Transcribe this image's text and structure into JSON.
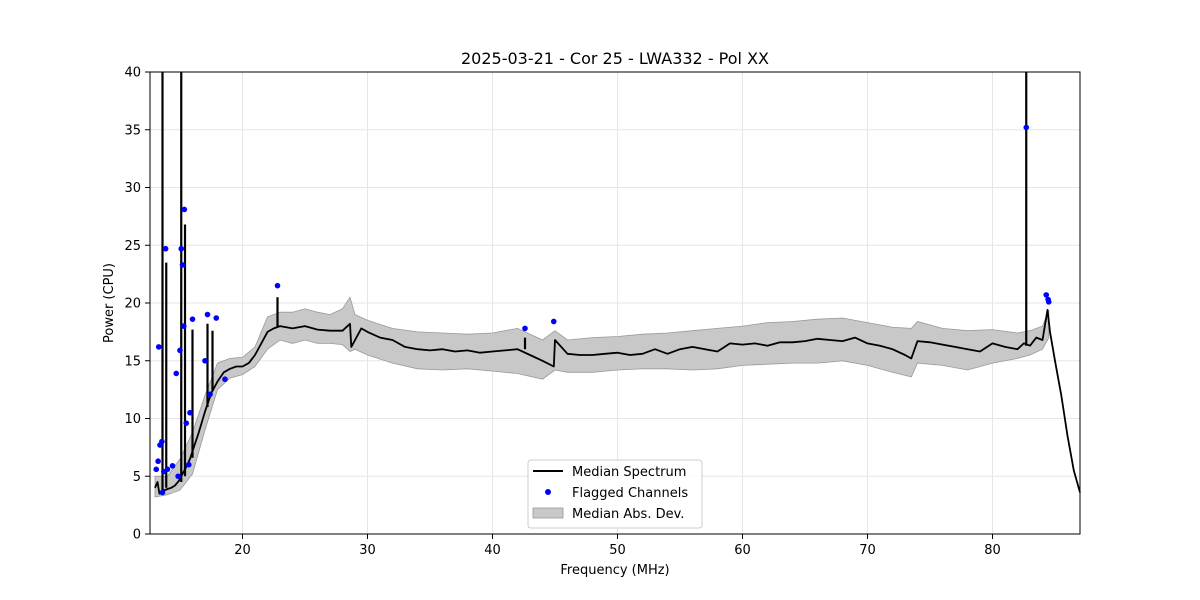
{
  "chart_data": {
    "type": "line",
    "title": "2025-03-21 - Cor 25 - LWA332 - Pol XX",
    "xlabel": "Frequency (MHz)",
    "ylabel": "Power (CPU)",
    "xlim": [
      12.6,
      87.0
    ],
    "ylim": [
      0,
      40
    ],
    "xticks": [
      20,
      30,
      40,
      50,
      60,
      70,
      80
    ],
    "yticks": [
      0,
      5,
      10,
      15,
      20,
      25,
      30,
      35,
      40
    ],
    "grid": true,
    "legend": {
      "position": "bottom-center",
      "entries": [
        "Median Spectrum",
        "Flagged Channels",
        "Median Abs. Dev."
      ]
    },
    "colors": {
      "median": "#000000",
      "flagged": "#0000ff",
      "band": "#c8c8c8",
      "band_edge": "#999999",
      "grid": "#e6e6e6"
    },
    "series": [
      {
        "name": "Median Spectrum",
        "x": [
          13.0,
          13.2,
          13.35,
          13.5,
          13.6,
          13.8,
          14.0,
          14.3,
          14.6,
          14.9,
          15.2,
          15.5,
          15.8,
          16.1,
          16.5,
          17.0,
          17.5,
          18.0,
          18.5,
          19.0,
          19.5,
          20.0,
          20.5,
          21.0,
          21.5,
          22.0,
          22.5,
          23.0,
          24.0,
          25.0,
          26.0,
          27.0,
          28.0,
          28.6,
          28.7,
          29.5,
          30.0,
          31.0,
          32.0,
          33.0,
          34.0,
          35.0,
          36.0,
          37.0,
          38.0,
          39.0,
          40.0,
          41.0,
          42.0,
          43.0,
          44.0,
          44.9,
          45.0,
          46.0,
          47.0,
          48.0,
          49.0,
          50.0,
          51.0,
          52.0,
          53.0,
          54.0,
          55.0,
          56.0,
          57.0,
          58.0,
          59.0,
          60.0,
          61.0,
          62.0,
          63.0,
          64.0,
          65.0,
          66.0,
          67.0,
          68.0,
          69.0,
          70.0,
          71.0,
          72.0,
          73.0,
          73.5,
          74.0,
          75.0,
          76.0,
          77.0,
          78.0,
          79.0,
          80.0,
          81.0,
          82.0,
          82.5,
          83.0,
          83.5,
          84.0,
          84.4,
          84.6,
          85.0,
          85.5,
          86.0,
          86.5,
          87.0
        ],
        "values": [
          4.0,
          4.5,
          3.5,
          3.5,
          3.8,
          3.8,
          3.9,
          4.0,
          4.2,
          4.6,
          5.2,
          5.8,
          6.5,
          7.5,
          8.8,
          10.6,
          12.2,
          13.2,
          14.0,
          14.3,
          14.5,
          14.5,
          14.8,
          15.5,
          16.5,
          17.5,
          17.8,
          18.0,
          17.8,
          18.0,
          17.7,
          17.6,
          17.6,
          18.2,
          16.2,
          17.8,
          17.5,
          17.0,
          16.8,
          16.2,
          16.0,
          15.9,
          16.0,
          15.8,
          15.9,
          15.7,
          15.8,
          15.9,
          16.0,
          15.5,
          15.0,
          14.5,
          16.8,
          15.6,
          15.5,
          15.5,
          15.6,
          15.7,
          15.5,
          15.6,
          16.0,
          15.6,
          16.0,
          16.2,
          16.0,
          15.8,
          16.5,
          16.4,
          16.5,
          16.3,
          16.6,
          16.6,
          16.7,
          16.9,
          16.8,
          16.7,
          17.0,
          16.5,
          16.3,
          16.0,
          15.5,
          15.2,
          16.7,
          16.6,
          16.4,
          16.2,
          16.0,
          15.8,
          16.5,
          16.2,
          16.0,
          16.5,
          16.3,
          17.0,
          16.8,
          19.4,
          17.5,
          15.0,
          12.0,
          8.5,
          5.5,
          3.6
        ]
      },
      {
        "name": "Median Abs. Dev.",
        "x": [
          13.0,
          14.0,
          15.0,
          16.0,
          17.0,
          18.0,
          19.0,
          20.0,
          21.0,
          22.0,
          23.0,
          24.0,
          25.0,
          26.0,
          27.0,
          28.0,
          28.6,
          29.0,
          30.0,
          32.0,
          34.0,
          36.0,
          38.0,
          40.0,
          42.0,
          44.0,
          45.0,
          46.0,
          48.0,
          50.0,
          52.0,
          54.0,
          56.0,
          58.0,
          60.0,
          62.0,
          64.0,
          66.0,
          68.0,
          70.0,
          72.0,
          73.5,
          74.0,
          76.0,
          78.0,
          80.0,
          82.0,
          83.0,
          84.0,
          84.5
        ],
        "lower": [
          3.2,
          3.4,
          3.8,
          5.2,
          9.0,
          12.5,
          13.5,
          13.8,
          14.5,
          16.0,
          16.8,
          16.5,
          16.8,
          16.5,
          16.5,
          16.4,
          15.8,
          16.0,
          15.5,
          14.8,
          14.3,
          14.2,
          14.3,
          14.1,
          13.9,
          13.4,
          14.2,
          14.0,
          14.0,
          14.2,
          14.3,
          14.3,
          14.2,
          14.3,
          14.6,
          14.7,
          14.8,
          14.8,
          15.0,
          14.6,
          14.0,
          13.6,
          14.8,
          14.6,
          14.2,
          14.8,
          15.2,
          15.5,
          16.0,
          17.0
        ],
        "upper": [
          5.0,
          5.0,
          6.5,
          8.8,
          12.0,
          14.8,
          15.2,
          15.3,
          16.2,
          18.8,
          19.2,
          19.2,
          19.5,
          19.2,
          19.0,
          19.5,
          20.5,
          19.0,
          18.5,
          17.8,
          17.5,
          17.4,
          17.3,
          17.4,
          17.8,
          16.8,
          17.6,
          16.8,
          17.0,
          17.1,
          17.3,
          17.4,
          17.6,
          17.8,
          18.0,
          18.3,
          18.4,
          18.6,
          18.7,
          18.3,
          17.9,
          17.8,
          18.4,
          17.8,
          17.6,
          17.7,
          17.4,
          17.6,
          18.0,
          19.4
        ]
      },
      {
        "name": "Flagged Channels",
        "points": [
          [
            13.1,
            5.6
          ],
          [
            13.25,
            6.3
          ],
          [
            13.4,
            7.7
          ],
          [
            13.55,
            8.0
          ],
          [
            13.7,
            5.4
          ],
          [
            13.85,
            24.7
          ],
          [
            14.0,
            5.6
          ],
          [
            14.4,
            5.9
          ],
          [
            14.7,
            13.9
          ],
          [
            14.85,
            5.0
          ],
          [
            15.0,
            15.9
          ],
          [
            15.1,
            24.7
          ],
          [
            15.2,
            23.3
          ],
          [
            15.3,
            18.0
          ],
          [
            15.35,
            28.1
          ],
          [
            15.5,
            9.6
          ],
          [
            15.7,
            6.0
          ],
          [
            15.8,
            10.5
          ],
          [
            16.0,
            18.6
          ],
          [
            13.3,
            16.2
          ],
          [
            13.6,
            3.6
          ],
          [
            17.0,
            15.0
          ],
          [
            17.2,
            19.0
          ],
          [
            17.4,
            12.1
          ],
          [
            17.9,
            18.7
          ],
          [
            18.6,
            13.4
          ],
          [
            22.8,
            21.5
          ],
          [
            42.6,
            17.8
          ],
          [
            44.9,
            18.4
          ],
          [
            82.7,
            35.2
          ],
          [
            84.3,
            20.7
          ],
          [
            84.45,
            20.3
          ],
          [
            84.5,
            20.1
          ]
        ]
      }
    ],
    "spikes": [
      {
        "x": 13.6,
        "base": 3.5,
        "peak": 40
      },
      {
        "x": 13.9,
        "base": 4.0,
        "peak": 23.5
      },
      {
        "x": 15.1,
        "base": 4.5,
        "peak": 40
      },
      {
        "x": 15.4,
        "base": 5.0,
        "peak": 26.8
      },
      {
        "x": 16.0,
        "base": 6.6,
        "peak": 17.7
      },
      {
        "x": 17.2,
        "base": 11.0,
        "peak": 18.2
      },
      {
        "x": 17.6,
        "base": 12.4,
        "peak": 17.6
      },
      {
        "x": 22.8,
        "base": 17.9,
        "peak": 20.5
      },
      {
        "x": 42.6,
        "base": 16.0,
        "peak": 17.0
      },
      {
        "x": 82.7,
        "base": 16.3,
        "peak": 40
      }
    ]
  }
}
